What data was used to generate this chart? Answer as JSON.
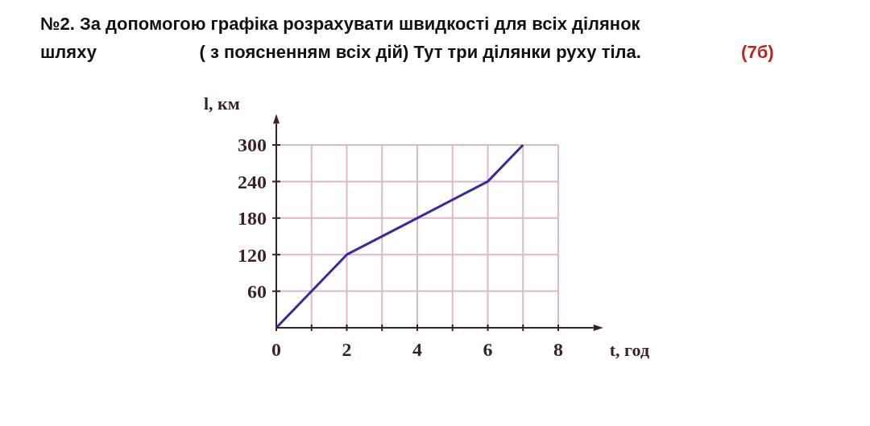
{
  "chart_data": {
    "type": "line",
    "title": "№2. За допомогою графіка розрахувати швидкості для всіх ділянок шляху",
    "subtitle": "( з поясненням всіх дій) Тут три ділянки руху тіла.",
    "annotations": [
      "(7б)"
    ],
    "xlabel": "t, год",
    "ylabel": "l, км",
    "x": [
      0,
      2,
      6,
      7
    ],
    "series": [
      {
        "color": "#3b2a9c",
        "values": [
          0,
          120,
          240,
          300
        ]
      }
    ],
    "xlim": [
      0,
      9
    ],
    "ylim": [
      0,
      335
    ],
    "xticks": [
      0,
      {
        "value": 1,
        "label": null
      },
      2,
      {
        "value": 3,
        "label": null
      },
      4,
      {
        "value": 5,
        "label": null
      },
      6,
      {
        "value": 7,
        "label": null
      },
      8
    ],
    "yticks": [
      60,
      120,
      180,
      240,
      300
    ],
    "grid": true,
    "marker": "none",
    "line_style": "solid"
  }
}
